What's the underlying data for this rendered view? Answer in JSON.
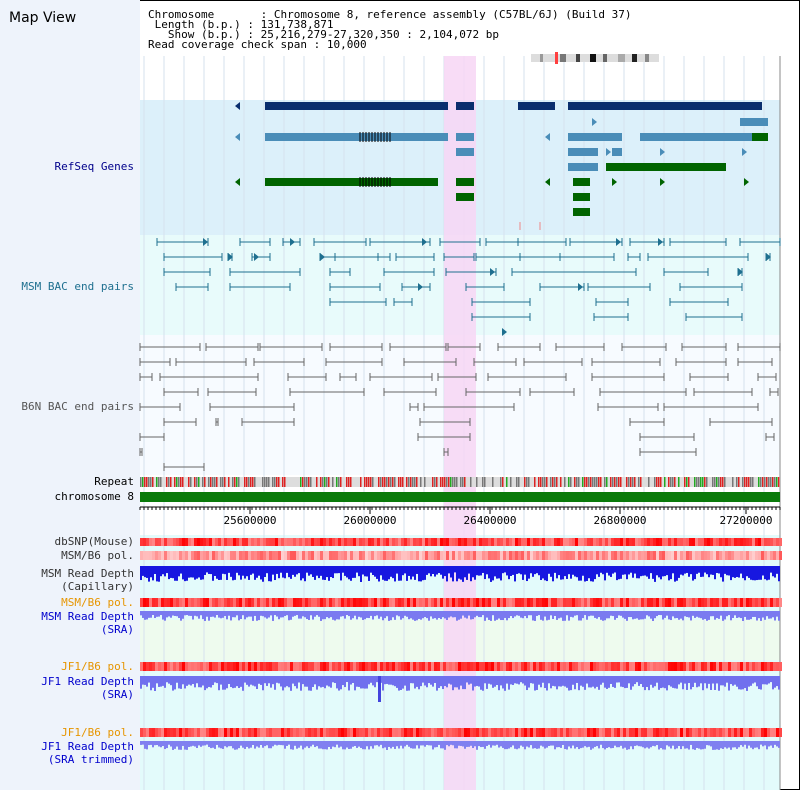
{
  "title": "Map View",
  "info": {
    "chromosome_key": "Chromosome",
    "chromosome_val": "Chromosome 8, reference assembly (C57BL/6J) (Build 37)",
    "length_key": "Length (b.p.)",
    "length_val": "131,738,871",
    "show_key": "Show (b.p.)",
    "show_val": "25,216,279-27,320,350 : 2,104,072 bp",
    "coverage_key": "Read coverage check span",
    "coverage_val": "10,000"
  },
  "tracks": {
    "refseq": "RefSeq Genes",
    "msm_bac": "MSM BAC end pairs",
    "b6n_bac": "B6N BAC end pairs",
    "repeat": "Repeat",
    "chrom": "chromosome 8",
    "dbsnp": "dbSNP(Mouse)",
    "msm_b6_pol": "MSM/B6 pol.",
    "msm_depth_1": "MSM Read Depth",
    "msm_depth_2": "(Capillary)",
    "msm_b6_pol_sra": "MSM/B6 pol.",
    "msm_depth_sra_1": "MSM Read Depth",
    "msm_depth_sra_2": "(SRA)",
    "jf1_pol": "JF1/B6 pol.",
    "jf1_depth_1": "JF1 Read Depth",
    "jf1_depth_2": "(SRA)",
    "jf1_pol_t": "JF1/B6 pol.",
    "jf1_depth_t_1": "JF1 Read Depth",
    "jf1_depth_t_2": "(SRA trimmed)"
  },
  "axis": {
    "ticks": [
      "25600000",
      "26000000",
      "26400000",
      "26800000",
      "27200000"
    ]
  },
  "colors": {
    "gene_dark": "#0a2e6e",
    "gene_mid": "#4a8db8",
    "gene_green": "#006400",
    "msm": "#1e6f8f",
    "b6n": "#666666",
    "highlight": "#f7d6f5"
  }
}
